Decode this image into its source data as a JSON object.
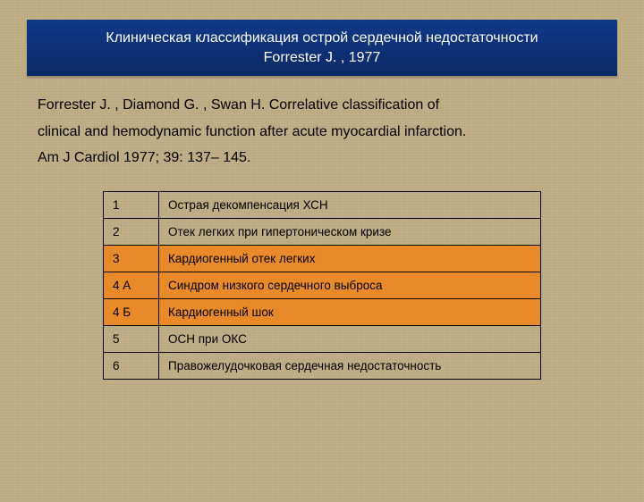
{
  "title": {
    "line1": "Клиническая классификация острой сердечной недостаточности",
    "line2": "Forrester J. , 1977"
  },
  "citation": {
    "line1": "Forrester J. , Diamond G. , Swan H. Correlative classification of",
    "line2": "clinical and hemodynamic function after acute myocardial infarction.",
    "line3": "Am J Cardiol 1977; 39: 137– 145."
  },
  "table": {
    "rows": [
      {
        "num": "1",
        "text": "Острая декомпенсация ХСН",
        "highlight": false
      },
      {
        "num": "2",
        "text": "Отек легких при гипертоническом кризе",
        "highlight": false
      },
      {
        "num": "3",
        "text": "Кардиогенный отек легких",
        "highlight": true
      },
      {
        "num": "4 А",
        "text": "Синдром низкого сердечного выброса",
        "highlight": true
      },
      {
        "num": "4 Б",
        "text": "Кардиогенный шок",
        "highlight": true
      },
      {
        "num": "5",
        "text": "ОСН при ОКС",
        "highlight": false
      },
      {
        "num": "6",
        "text": "Правожелудочковая сердечная недостаточность",
        "highlight": false
      }
    ],
    "highlight_color": "#e88a2a",
    "border_color": "#000000"
  },
  "colors": {
    "background": "#c0b088",
    "title_band": "#0a2a66",
    "title_text": "#ffffff",
    "body_text": "#000000"
  }
}
